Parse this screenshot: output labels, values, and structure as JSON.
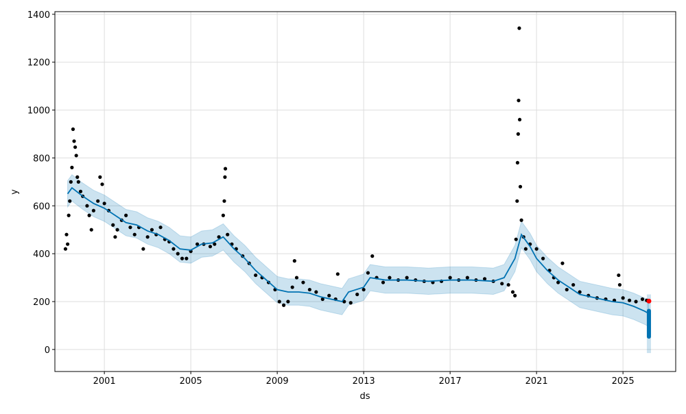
{
  "chart_data": {
    "type": "scatter",
    "title": "",
    "xlabel": "ds",
    "ylabel": "y",
    "xlim": [
      1998.71,
      2027.44
    ],
    "ylim": [
      -92,
      1411
    ],
    "xticks": [
      2001,
      2005,
      2009,
      2013,
      2017,
      2021,
      2025
    ],
    "yticks": [
      0,
      200,
      400,
      600,
      800,
      1000,
      1200,
      1400
    ],
    "grid": true,
    "colors": {
      "actual": "#000000",
      "forecast": "#0072B2",
      "band": "#0072B2",
      "last_point": "#ff0000"
    },
    "forecast": [
      [
        1999.3,
        650
      ],
      [
        1999.5,
        675
      ],
      [
        2000,
        640
      ],
      [
        2000.5,
        610
      ],
      [
        2001,
        590
      ],
      [
        2001.5,
        560
      ],
      [
        2002,
        530
      ],
      [
        2002.5,
        520
      ],
      [
        2003,
        495
      ],
      [
        2003.5,
        480
      ],
      [
        2004,
        455
      ],
      [
        2004.5,
        420
      ],
      [
        2005,
        415
      ],
      [
        2005.5,
        440
      ],
      [
        2006,
        445
      ],
      [
        2006.5,
        470
      ],
      [
        2007,
        420
      ],
      [
        2007.5,
        380
      ],
      [
        2008,
        330
      ],
      [
        2008.5,
        290
      ],
      [
        2009,
        250
      ],
      [
        2009.5,
        240
      ],
      [
        2010,
        240
      ],
      [
        2010.5,
        235
      ],
      [
        2011,
        220
      ],
      [
        2011.5,
        210
      ],
      [
        2012,
        200
      ],
      [
        2012.3,
        240
      ],
      [
        2013,
        260
      ],
      [
        2013.3,
        300
      ],
      [
        2014,
        290
      ],
      [
        2015,
        290
      ],
      [
        2016,
        285
      ],
      [
        2017,
        290
      ],
      [
        2018,
        290
      ],
      [
        2019,
        285
      ],
      [
        2019.5,
        300
      ],
      [
        2020,
        380
      ],
      [
        2020.3,
        480
      ],
      [
        2020.7,
        430
      ],
      [
        2021,
        380
      ],
      [
        2021.5,
        330
      ],
      [
        2022,
        290
      ],
      [
        2022.5,
        260
      ],
      [
        2023,
        230
      ],
      [
        2023.5,
        220
      ],
      [
        2024,
        210
      ],
      [
        2024.5,
        200
      ],
      [
        2025,
        195
      ],
      [
        2025.5,
        180
      ],
      [
        2026,
        160
      ],
      [
        2026.2,
        150
      ]
    ],
    "band_halfwidth": 55,
    "forecast_spread": {
      "x": 2026.2,
      "low": 45,
      "high": 170,
      "band_low": -15,
      "band_high": 230
    },
    "actual": [
      [
        1999.2,
        420
      ],
      [
        1999.25,
        480
      ],
      [
        1999.3,
        440
      ],
      [
        1999.35,
        560
      ],
      [
        1999.4,
        620
      ],
      [
        1999.45,
        700
      ],
      [
        1999.5,
        760
      ],
      [
        1999.55,
        920
      ],
      [
        1999.6,
        870
      ],
      [
        1999.65,
        845
      ],
      [
        1999.7,
        810
      ],
      [
        1999.75,
        720
      ],
      [
        1999.8,
        700
      ],
      [
        1999.9,
        660
      ],
      [
        2000,
        640
      ],
      [
        2000.2,
        600
      ],
      [
        2000.3,
        560
      ],
      [
        2000.4,
        500
      ],
      [
        2000.5,
        580
      ],
      [
        2000.7,
        620
      ],
      [
        2000.8,
        720
      ],
      [
        2000.9,
        690
      ],
      [
        2001,
        610
      ],
      [
        2001.2,
        580
      ],
      [
        2001.4,
        520
      ],
      [
        2001.5,
        470
      ],
      [
        2001.6,
        500
      ],
      [
        2001.8,
        540
      ],
      [
        2002,
        560
      ],
      [
        2002.2,
        510
      ],
      [
        2002.4,
        480
      ],
      [
        2002.6,
        510
      ],
      [
        2002.8,
        420
      ],
      [
        2003,
        470
      ],
      [
        2003.2,
        500
      ],
      [
        2003.4,
        480
      ],
      [
        2003.6,
        510
      ],
      [
        2003.8,
        460
      ],
      [
        2004,
        450
      ],
      [
        2004.2,
        420
      ],
      [
        2004.4,
        400
      ],
      [
        2004.6,
        380
      ],
      [
        2004.8,
        380
      ],
      [
        2005,
        410
      ],
      [
        2005.3,
        440
      ],
      [
        2005.6,
        440
      ],
      [
        2005.9,
        430
      ],
      [
        2006.1,
        440
      ],
      [
        2006.3,
        470
      ],
      [
        2006.5,
        560
      ],
      [
        2006.55,
        620
      ],
      [
        2006.58,
        720
      ],
      [
        2006.6,
        755
      ],
      [
        2006.7,
        480
      ],
      [
        2006.9,
        440
      ],
      [
        2007.1,
        420
      ],
      [
        2007.4,
        390
      ],
      [
        2007.7,
        360
      ],
      [
        2008,
        310
      ],
      [
        2008.3,
        300
      ],
      [
        2008.6,
        280
      ],
      [
        2008.9,
        250
      ],
      [
        2009.1,
        200
      ],
      [
        2009.3,
        185
      ],
      [
        2009.5,
        200
      ],
      [
        2009.7,
        260
      ],
      [
        2009.8,
        370
      ],
      [
        2009.9,
        300
      ],
      [
        2010.2,
        280
      ],
      [
        2010.5,
        250
      ],
      [
        2010.8,
        240
      ],
      [
        2011.1,
        210
      ],
      [
        2011.4,
        225
      ],
      [
        2011.7,
        210
      ],
      [
        2011.8,
        315
      ],
      [
        2012.1,
        200
      ],
      [
        2012.4,
        195
      ],
      [
        2012.7,
        230
      ],
      [
        2013,
        250
      ],
      [
        2013.2,
        320
      ],
      [
        2013.4,
        390
      ],
      [
        2013.6,
        300
      ],
      [
        2013.9,
        280
      ],
      [
        2014.2,
        300
      ],
      [
        2014.6,
        290
      ],
      [
        2015,
        300
      ],
      [
        2015.4,
        290
      ],
      [
        2015.8,
        285
      ],
      [
        2016.2,
        280
      ],
      [
        2016.6,
        285
      ],
      [
        2017,
        300
      ],
      [
        2017.4,
        290
      ],
      [
        2017.8,
        300
      ],
      [
        2018.2,
        290
      ],
      [
        2018.6,
        295
      ],
      [
        2019,
        285
      ],
      [
        2019.4,
        275
      ],
      [
        2019.7,
        270
      ],
      [
        2019.9,
        240
      ],
      [
        2020,
        225
      ],
      [
        2020.05,
        460
      ],
      [
        2020.1,
        620
      ],
      [
        2020.12,
        780
      ],
      [
        2020.15,
        900
      ],
      [
        2020.17,
        1040
      ],
      [
        2020.2,
        1342
      ],
      [
        2020.22,
        960
      ],
      [
        2020.25,
        680
      ],
      [
        2020.3,
        540
      ],
      [
        2020.4,
        470
      ],
      [
        2020.5,
        420
      ],
      [
        2020.7,
        440
      ],
      [
        2021,
        420
      ],
      [
        2021.3,
        380
      ],
      [
        2021.6,
        330
      ],
      [
        2021.8,
        300
      ],
      [
        2022,
        280
      ],
      [
        2022.2,
        360
      ],
      [
        2022.4,
        250
      ],
      [
        2022.7,
        270
      ],
      [
        2023,
        240
      ],
      [
        2023.4,
        225
      ],
      [
        2023.8,
        215
      ],
      [
        2024.2,
        210
      ],
      [
        2024.6,
        205
      ],
      [
        2024.8,
        310
      ],
      [
        2024.85,
        270
      ],
      [
        2025,
        215
      ],
      [
        2025.3,
        205
      ],
      [
        2025.6,
        200
      ],
      [
        2025.9,
        210
      ],
      [
        2026.1,
        205
      ]
    ],
    "last_actual": [
      2026.2,
      202
    ]
  }
}
